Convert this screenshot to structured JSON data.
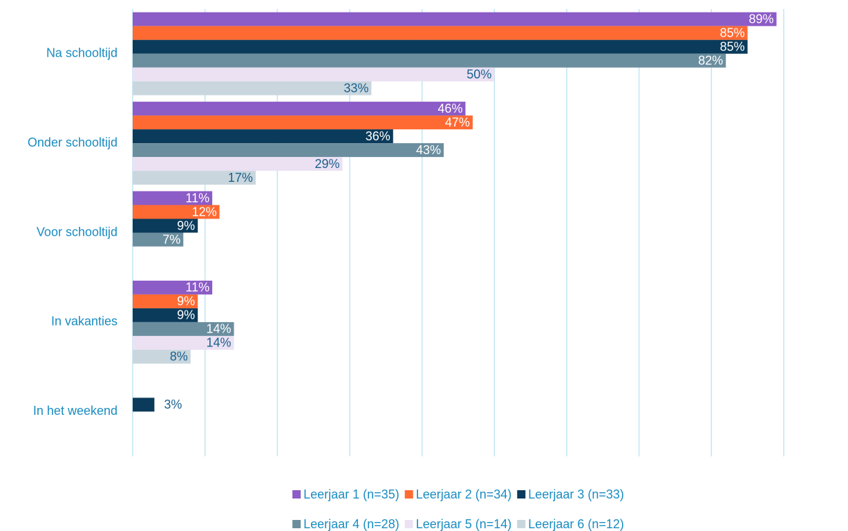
{
  "chart_data": {
    "type": "hbar",
    "categories": [
      "Na schooltijd",
      "Onder schooltijd",
      "Voor schooltijd",
      "In vakanties",
      "In het weekend"
    ],
    "series": [
      {
        "name": "Leerjaar 1 (n=35)",
        "color": "#8c5cc7",
        "values": [
          89,
          46,
          11,
          11,
          null
        ],
        "value_labels": [
          "89%",
          "46%",
          "11%",
          "11%",
          null
        ]
      },
      {
        "name": "Leerjaar 2 (n=34)",
        "color": "#ff6a33",
        "values": [
          85,
          47,
          12,
          9,
          null
        ],
        "value_labels": [
          "85%",
          "47%",
          "12%",
          "9%",
          null
        ]
      },
      {
        "name": "Leerjaar 3 (n=33)",
        "color": "#0b3b5b",
        "values": [
          85,
          36,
          9,
          9,
          3
        ],
        "value_labels": [
          "85%",
          "36%",
          "9%",
          "9%",
          "3%"
        ]
      },
      {
        "name": "Leerjaar 4 (n=28)",
        "color": "#6b8e9f",
        "values": [
          82,
          43,
          7,
          14,
          null
        ],
        "value_labels": [
          "82%",
          "43%",
          "7%",
          "14%",
          null
        ]
      },
      {
        "name": "Leerjaar 5 (n=14)",
        "color": "#ebe1f3",
        "values": [
          50,
          29,
          null,
          14,
          null
        ],
        "value_labels": [
          "50%",
          "29%",
          null,
          "14%",
          null
        ]
      },
      {
        "name": "Leerjaar 6 (n=12)",
        "color": "#c9d6dd",
        "values": [
          33,
          17,
          null,
          8,
          null
        ],
        "value_labels": [
          "33%",
          "17%",
          null,
          "8%",
          null
        ]
      }
    ],
    "xlim": [
      0,
      90
    ],
    "xticks": [
      0,
      10,
      20,
      30,
      40,
      50,
      60,
      70,
      80,
      90
    ],
    "grid": true,
    "legend": "bottom"
  }
}
